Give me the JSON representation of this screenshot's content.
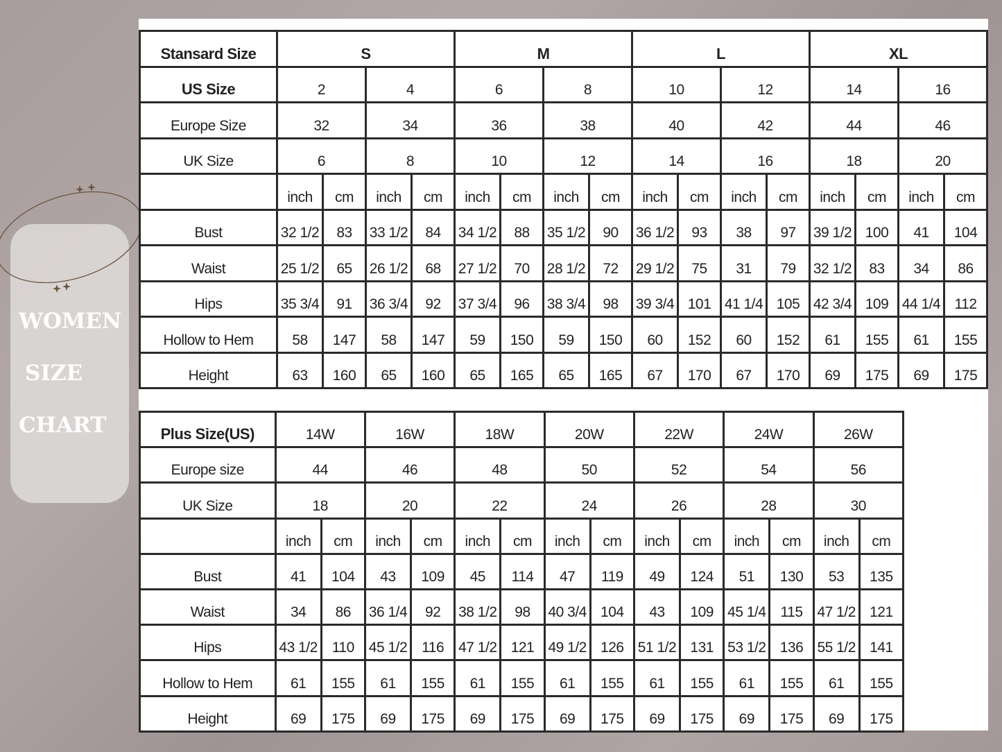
{
  "side_panel": {
    "title_lines": [
      "WOMEN",
      "SIZE",
      "CHART"
    ],
    "accent_color": "#6b5540"
  },
  "standard": {
    "header_label": "Stansard Size",
    "groups": [
      "S",
      "M",
      "L",
      "XL"
    ],
    "size_rows": [
      {
        "label": "US Size",
        "values": [
          "2",
          "4",
          "6",
          "8",
          "10",
          "12",
          "14",
          "16"
        ]
      },
      {
        "label": "Europe Size",
        "values": [
          "32",
          "34",
          "36",
          "38",
          "40",
          "42",
          "44",
          "46"
        ]
      },
      {
        "label": "UK Size",
        "values": [
          "6",
          "8",
          "10",
          "12",
          "14",
          "16",
          "18",
          "20"
        ]
      }
    ],
    "units": [
      "inch",
      "cm",
      "inch",
      "cm",
      "inch",
      "cm",
      "inch",
      "cm",
      "inch",
      "cm",
      "inch",
      "cm",
      "inch",
      "cm",
      "inch",
      "cm"
    ],
    "measure_rows": [
      {
        "label": "Bust",
        "values": [
          "32 1/2",
          "83",
          "33 1/2",
          "84",
          "34 1/2",
          "88",
          "35 1/2",
          "90",
          "36 1/2",
          "93",
          "38",
          "97",
          "39 1/2",
          "100",
          "41",
          "104"
        ]
      },
      {
        "label": "Waist",
        "values": [
          "25 1/2",
          "65",
          "26 1/2",
          "68",
          "27 1/2",
          "70",
          "28 1/2",
          "72",
          "29 1/2",
          "75",
          "31",
          "79",
          "32 1/2",
          "83",
          "34",
          "86"
        ]
      },
      {
        "label": "Hips",
        "values": [
          "35 3/4",
          "91",
          "36 3/4",
          "92",
          "37 3/4",
          "96",
          "38 3/4",
          "98",
          "39 3/4",
          "101",
          "41 1/4",
          "105",
          "42 3/4",
          "109",
          "44 1/4",
          "112"
        ]
      },
      {
        "label": "Hollow to Hem",
        "values": [
          "58",
          "147",
          "58",
          "147",
          "59",
          "150",
          "59",
          "150",
          "60",
          "152",
          "60",
          "152",
          "61",
          "155",
          "61",
          "155"
        ]
      },
      {
        "label": "Height",
        "values": [
          "63",
          "160",
          "65",
          "160",
          "65",
          "165",
          "65",
          "165",
          "67",
          "170",
          "67",
          "170",
          "69",
          "175",
          "69",
          "175"
        ]
      }
    ]
  },
  "plus": {
    "header_label": "Plus Size(US)",
    "sizes": [
      "14W",
      "16W",
      "18W",
      "20W",
      "22W",
      "24W",
      "26W"
    ],
    "size_rows": [
      {
        "label": "Europe size",
        "values": [
          "44",
          "46",
          "48",
          "50",
          "52",
          "54",
          "56"
        ]
      },
      {
        "label": "UK Size",
        "values": [
          "18",
          "20",
          "22",
          "24",
          "26",
          "28",
          "30"
        ]
      }
    ],
    "units": [
      "inch",
      "cm",
      "inch",
      "cm",
      "inch",
      "cm",
      "inch",
      "cm",
      "inch",
      "cm",
      "inch",
      "cm",
      "inch",
      "cm"
    ],
    "measure_rows": [
      {
        "label": "Bust",
        "values": [
          "41",
          "104",
          "43",
          "109",
          "45",
          "114",
          "47",
          "119",
          "49",
          "124",
          "51",
          "130",
          "53",
          "135"
        ]
      },
      {
        "label": "Waist",
        "values": [
          "34",
          "86",
          "36 1/4",
          "92",
          "38 1/2",
          "98",
          "40 3/4",
          "104",
          "43",
          "109",
          "45 1/4",
          "115",
          "47 1/2",
          "121"
        ]
      },
      {
        "label": "Hips",
        "values": [
          "43 1/2",
          "110",
          "45 1/2",
          "116",
          "47 1/2",
          "121",
          "49 1/2",
          "126",
          "51 1/2",
          "131",
          "53 1/2",
          "136",
          "55 1/2",
          "141"
        ]
      },
      {
        "label": "Hollow to Hem",
        "values": [
          "61",
          "155",
          "61",
          "155",
          "61",
          "155",
          "61",
          "155",
          "61",
          "155",
          "61",
          "155",
          "61",
          "155"
        ]
      },
      {
        "label": "Height",
        "values": [
          "69",
          "175",
          "69",
          "175",
          "69",
          "175",
          "69",
          "175",
          "69",
          "175",
          "69",
          "175",
          "69",
          "175"
        ]
      }
    ]
  }
}
